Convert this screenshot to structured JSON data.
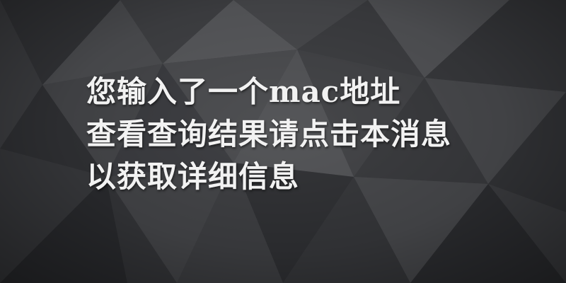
{
  "message": {
    "lines": [
      "您输入了一个mac地址",
      "查看查询结果请点击本消息",
      "以获取详细信息"
    ]
  },
  "colors": {
    "background": "#3c3d40",
    "text": "#f2f2f2"
  }
}
